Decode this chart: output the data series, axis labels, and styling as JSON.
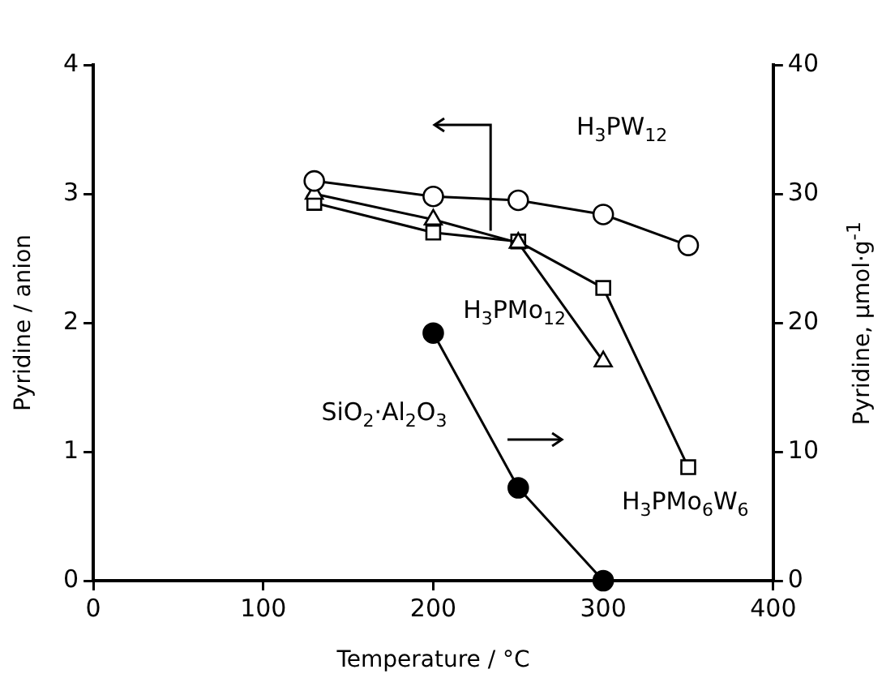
{
  "chart_data": {
    "type": "line",
    "xlabel": "Temperature / °C",
    "ylabel": "Pyridine / anion",
    "y2label": "Pyridine, µmol·g$^{-1}$",
    "xlim": [
      0,
      400
    ],
    "xticks": [
      0,
      100,
      200,
      300,
      400
    ],
    "ylim": [
      0,
      4
    ],
    "yticks": [
      0,
      1,
      2,
      3,
      4
    ],
    "y2lim": [
      0,
      40
    ],
    "y2ticks": [
      0,
      10,
      20,
      30,
      40
    ],
    "grid": false,
    "legend": false,
    "line_style": "solid",
    "series": [
      {
        "name": "H$_{3}$PW$_{12}$",
        "color": "#000000",
        "marker": "circle",
        "x": [
          130,
          200,
          250,
          300,
          350
        ],
        "values": [
          3.1,
          2.98,
          2.95,
          2.84,
          2.6
        ]
      },
      {
        "name": "H$_{3}$PMo$_{12}$",
        "color": "#000000",
        "marker": "triangle",
        "x": [
          130,
          200,
          250,
          300
        ],
        "values": [
          3.0,
          2.8,
          2.62,
          1.7
        ]
      },
      {
        "name": "H$_{3}$PMo$_{6}$W$_{6}$",
        "color": "#000000",
        "marker": "square",
        "x": [
          130,
          200,
          250,
          300,
          350
        ],
        "values": [
          2.93,
          2.7,
          2.63,
          2.27,
          0.88
        ]
      },
      {
        "name": "SiO$_{2}$·Al$_{2}$O$_{3}$",
        "color": "#000000",
        "marker": "circle",
        "axis": "y2",
        "x": [
          200,
          250,
          300
        ],
        "values": [
          19.2,
          7.2,
          0
        ]
      }
    ]
  }
}
